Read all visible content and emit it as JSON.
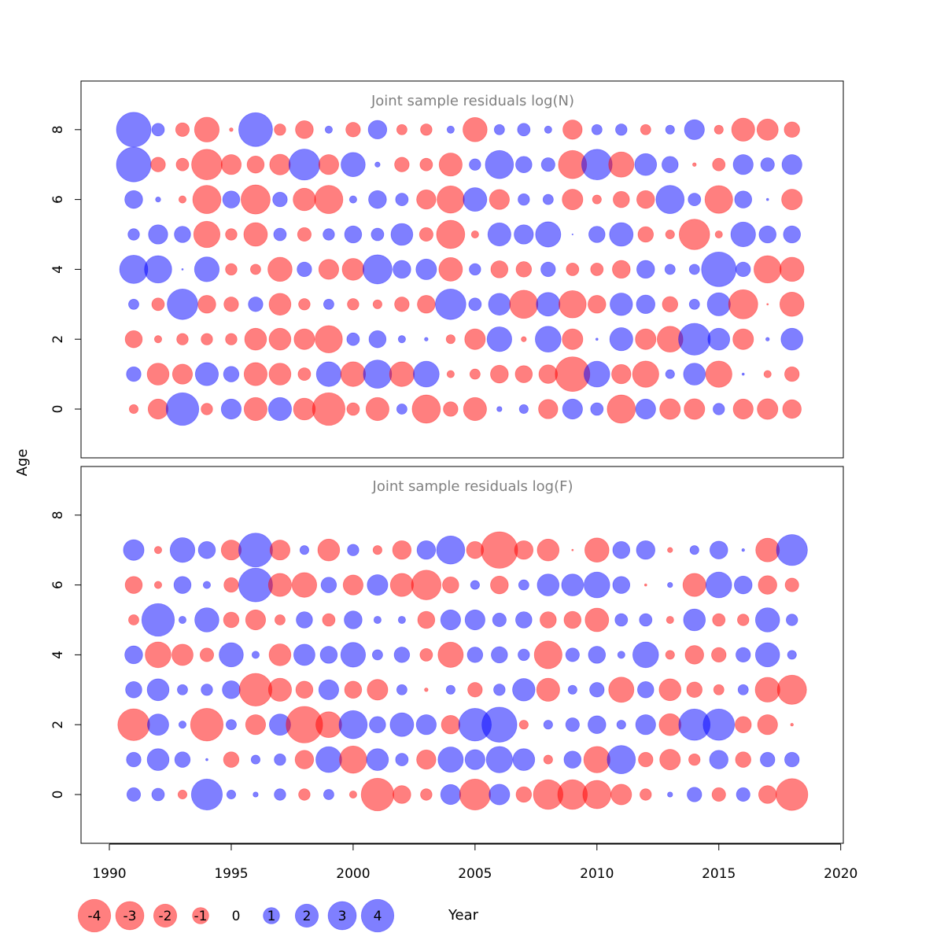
{
  "chart_data": {
    "type": "scatter",
    "subtype": "bubble",
    "xlabel": "Year",
    "ylabel": "Age",
    "xlim": [
      1989,
      2020
    ],
    "ylim": [
      -1.5,
      9.3
    ],
    "x_ticks": [
      1990,
      1995,
      2000,
      2005,
      2010,
      2015,
      2020
    ],
    "y_ticks": [
      0,
      2,
      4,
      6,
      8
    ],
    "years": [
      1991,
      1992,
      1993,
      1994,
      1995,
      1996,
      1997,
      1998,
      1999,
      2000,
      2001,
      2002,
      2003,
      2004,
      2005,
      2006,
      2007,
      2008,
      2009,
      2010,
      2011,
      2012,
      2013,
      2014,
      2015,
      2016,
      2017,
      2018
    ],
    "colors": {
      "positive": "#0000ff",
      "negative": "#ff0000",
      "opacity": 0.5
    },
    "legend": {
      "values": [
        -4,
        -3,
        -2,
        -1,
        0,
        1,
        2,
        3,
        4
      ],
      "labels": [
        "-4",
        "-3",
        "-2",
        "-1",
        "0",
        "1",
        "2",
        "3",
        "4"
      ]
    },
    "panels": [
      {
        "title": "Joint sample residuals log(N)",
        "ages": [
          0,
          1,
          2,
          3,
          4,
          5,
          6,
          7,
          8
        ],
        "residuals": [
          [
            -0.3,
            -1.5,
            4.0,
            -0.5,
            1.5,
            -2.0,
            2.0,
            -1.8,
            -4.0,
            -0.6,
            -2.0,
            0.4,
            -3.0,
            -0.8,
            -2.0,
            0.1,
            0.3,
            -1.4,
            1.5,
            0.6,
            -3.0,
            1.5,
            -1.6,
            -1.6,
            0.5,
            -1.5,
            -1.6,
            -1.3
          ],
          [
            0.8,
            -1.8,
            -1.5,
            2.0,
            0.9,
            -2.0,
            -1.8,
            -0.6,
            2.3,
            -2.3,
            3.0,
            -2.3,
            2.5,
            -0.2,
            -0.4,
            -1.2,
            -1.1,
            -1.3,
            -4.5,
            2.5,
            -1.4,
            -2.6,
            0.3,
            1.8,
            -2.6,
            0.02,
            -0.2,
            -0.8
          ],
          [
            -1.1,
            -0.2,
            -0.5,
            -0.5,
            -0.5,
            -1.8,
            -1.8,
            -1.6,
            -2.8,
            0.6,
            1.1,
            0.2,
            0.05,
            -0.3,
            -1.6,
            2.3,
            -0.1,
            2.5,
            -1.6,
            0.02,
            2.0,
            -1.6,
            -2.5,
            3.8,
            1.8,
            -1.6,
            0.05,
            1.8
          ],
          [
            0.4,
            -0.6,
            3.5,
            -1.2,
            -0.8,
            0.8,
            -1.8,
            -0.5,
            0.4,
            -0.5,
            -0.3,
            -0.8,
            -1.2,
            3.5,
            0.6,
            1.8,
            -3.0,
            2.1,
            -2.8,
            -1.2,
            1.9,
            1.3,
            -0.9,
            0.4,
            2.0,
            -3.2,
            -0.01,
            -2.2
          ],
          [
            3.0,
            2.8,
            0.01,
            2.3,
            -0.5,
            -0.4,
            -2.2,
            0.8,
            -1.5,
            -1.8,
            3.2,
            1.2,
            1.6,
            -2.1,
            0.5,
            -1.1,
            -0.9,
            0.8,
            -0.6,
            -0.6,
            -1.2,
            1.2,
            0.4,
            0.4,
            4.5,
            0.8,
            -2.8,
            -2.2
          ],
          [
            0.5,
            1.4,
            1.0,
            -2.6,
            -0.5,
            -2.1,
            0.6,
            -0.7,
            0.5,
            1.1,
            0.6,
            1.8,
            -0.7,
            -3.0,
            -0.2,
            2.0,
            1.4,
            2.4,
            0.005,
            1.0,
            2.1,
            -0.9,
            -0.3,
            -3.5,
            -0.2,
            2.3,
            1.1,
            1.1
          ],
          [
            1.2,
            0.1,
            -0.2,
            -3.0,
            1.1,
            -3.2,
            0.8,
            -1.9,
            -3.0,
            0.2,
            1.2,
            0.6,
            -1.4,
            -2.8,
            2.1,
            -1.5,
            0.5,
            0.4,
            -1.6,
            -0.3,
            -1.0,
            -1.2,
            3.0,
            0.6,
            -2.9,
            1.1,
            0.02,
            -1.6
          ],
          [
            4.5,
            -0.8,
            -0.6,
            -3.5,
            -1.5,
            -1.1,
            -1.6,
            3.6,
            -1.5,
            2.2,
            0.1,
            -0.8,
            -0.6,
            -2.0,
            0.5,
            3.0,
            1.0,
            0.7,
            -3.0,
            3.5,
            -2.4,
            1.8,
            1.0,
            -0.05,
            -0.6,
            1.5,
            0.7,
            1.5
          ],
          [
            4.5,
            0.6,
            -0.7,
            -2.3,
            -0.05,
            4.3,
            -0.5,
            -1.2,
            0.2,
            -0.8,
            1.3,
            -0.4,
            -0.5,
            0.2,
            -2.2,
            0.4,
            0.6,
            0.2,
            -1.4,
            0.4,
            0.5,
            -0.4,
            0.3,
            1.5,
            -0.3,
            -2.0,
            -1.7,
            -0.9
          ]
        ]
      },
      {
        "title": "Joint sample residuals log(F)",
        "ages": [
          0,
          1,
          2,
          3,
          4,
          5,
          6,
          7
        ],
        "residuals": [
          [
            0.7,
            0.6,
            -0.3,
            3.6,
            0.3,
            0.1,
            0.5,
            -0.5,
            0.4,
            -0.2,
            -4.0,
            -1.2,
            -0.5,
            1.5,
            -3.6,
            1.6,
            -0.9,
            -3.3,
            -3.3,
            -3.0,
            -1.6,
            -0.5,
            0.1,
            0.8,
            -0.7,
            0.7,
            -1.2,
            -3.8
          ],
          [
            0.8,
            1.8,
            0.9,
            0.02,
            -0.9,
            0.3,
            0.5,
            -1.3,
            2.5,
            -2.8,
            1.8,
            0.6,
            -1.4,
            2.4,
            1.5,
            2.6,
            1.8,
            -0.3,
            1.1,
            -2.6,
            3.0,
            -0.8,
            -1.6,
            -0.5,
            1.3,
            -0.9,
            0.8,
            0.8
          ],
          [
            -3.8,
            1.7,
            0.2,
            -4.0,
            0.4,
            -1.5,
            1.7,
            -5.0,
            -2.5,
            3.0,
            1.0,
            2.1,
            1.5,
            -1.3,
            4.0,
            4.6,
            -0.3,
            0.3,
            0.7,
            1.2,
            0.3,
            1.5,
            -1.8,
            3.7,
            3.7,
            -1.0,
            -1.5,
            -0.03
          ],
          [
            1.0,
            1.8,
            0.4,
            0.5,
            1.2,
            -4.0,
            -2.0,
            -1.1,
            1.5,
            -1.1,
            -1.6,
            0.4,
            -0.05,
            0.3,
            -0.8,
            0.5,
            1.9,
            -2.0,
            0.3,
            0.8,
            -2.4,
            1.0,
            -1.8,
            -0.9,
            -0.4,
            0.4,
            -2.3,
            -3.2
          ],
          [
            1.2,
            -2.5,
            -1.7,
            -0.7,
            2.2,
            0.2,
            -1.8,
            1.7,
            1.1,
            2.3,
            0.4,
            0.9,
            -0.6,
            -2.4,
            0.9,
            1.0,
            0.5,
            -2.9,
            0.7,
            1.1,
            0.2,
            2.5,
            -0.3,
            -1.3,
            -0.8,
            0.8,
            2.2,
            0.3
          ],
          [
            -0.4,
            4.0,
            0.2,
            2.2,
            -0.9,
            -1.5,
            -0.4,
            1.0,
            -0.6,
            1.2,
            0.2,
            0.2,
            -1.1,
            1.5,
            1.5,
            0.7,
            1.0,
            -1.0,
            -1.1,
            -2.1,
            0.6,
            0.6,
            -0.2,
            1.8,
            -0.6,
            -0.5,
            2.2,
            0.5
          ],
          [
            -1.1,
            -0.2,
            1.1,
            0.2,
            -0.8,
            4.3,
            -2.0,
            -2.3,
            0.9,
            -1.5,
            1.6,
            -2.0,
            -3.3,
            -1.0,
            0.3,
            -1.2,
            0.4,
            1.8,
            1.8,
            2.5,
            1.1,
            -0.02,
            0.1,
            -2.0,
            2.5,
            1.2,
            -1.3,
            -0.7
          ],
          [
            1.6,
            -0.2,
            2.3,
            1.1,
            -1.5,
            4.3,
            -1.5,
            0.3,
            -1.8,
            0.5,
            -0.3,
            -1.3,
            1.3,
            3.0,
            -1.1,
            -5.0,
            -1.3,
            -1.8,
            -0.01,
            -2.2,
            1.1,
            1.3,
            -0.1,
            0.3,
            1.2,
            0.03,
            -2.1,
            3.6
          ]
        ]
      }
    ]
  }
}
